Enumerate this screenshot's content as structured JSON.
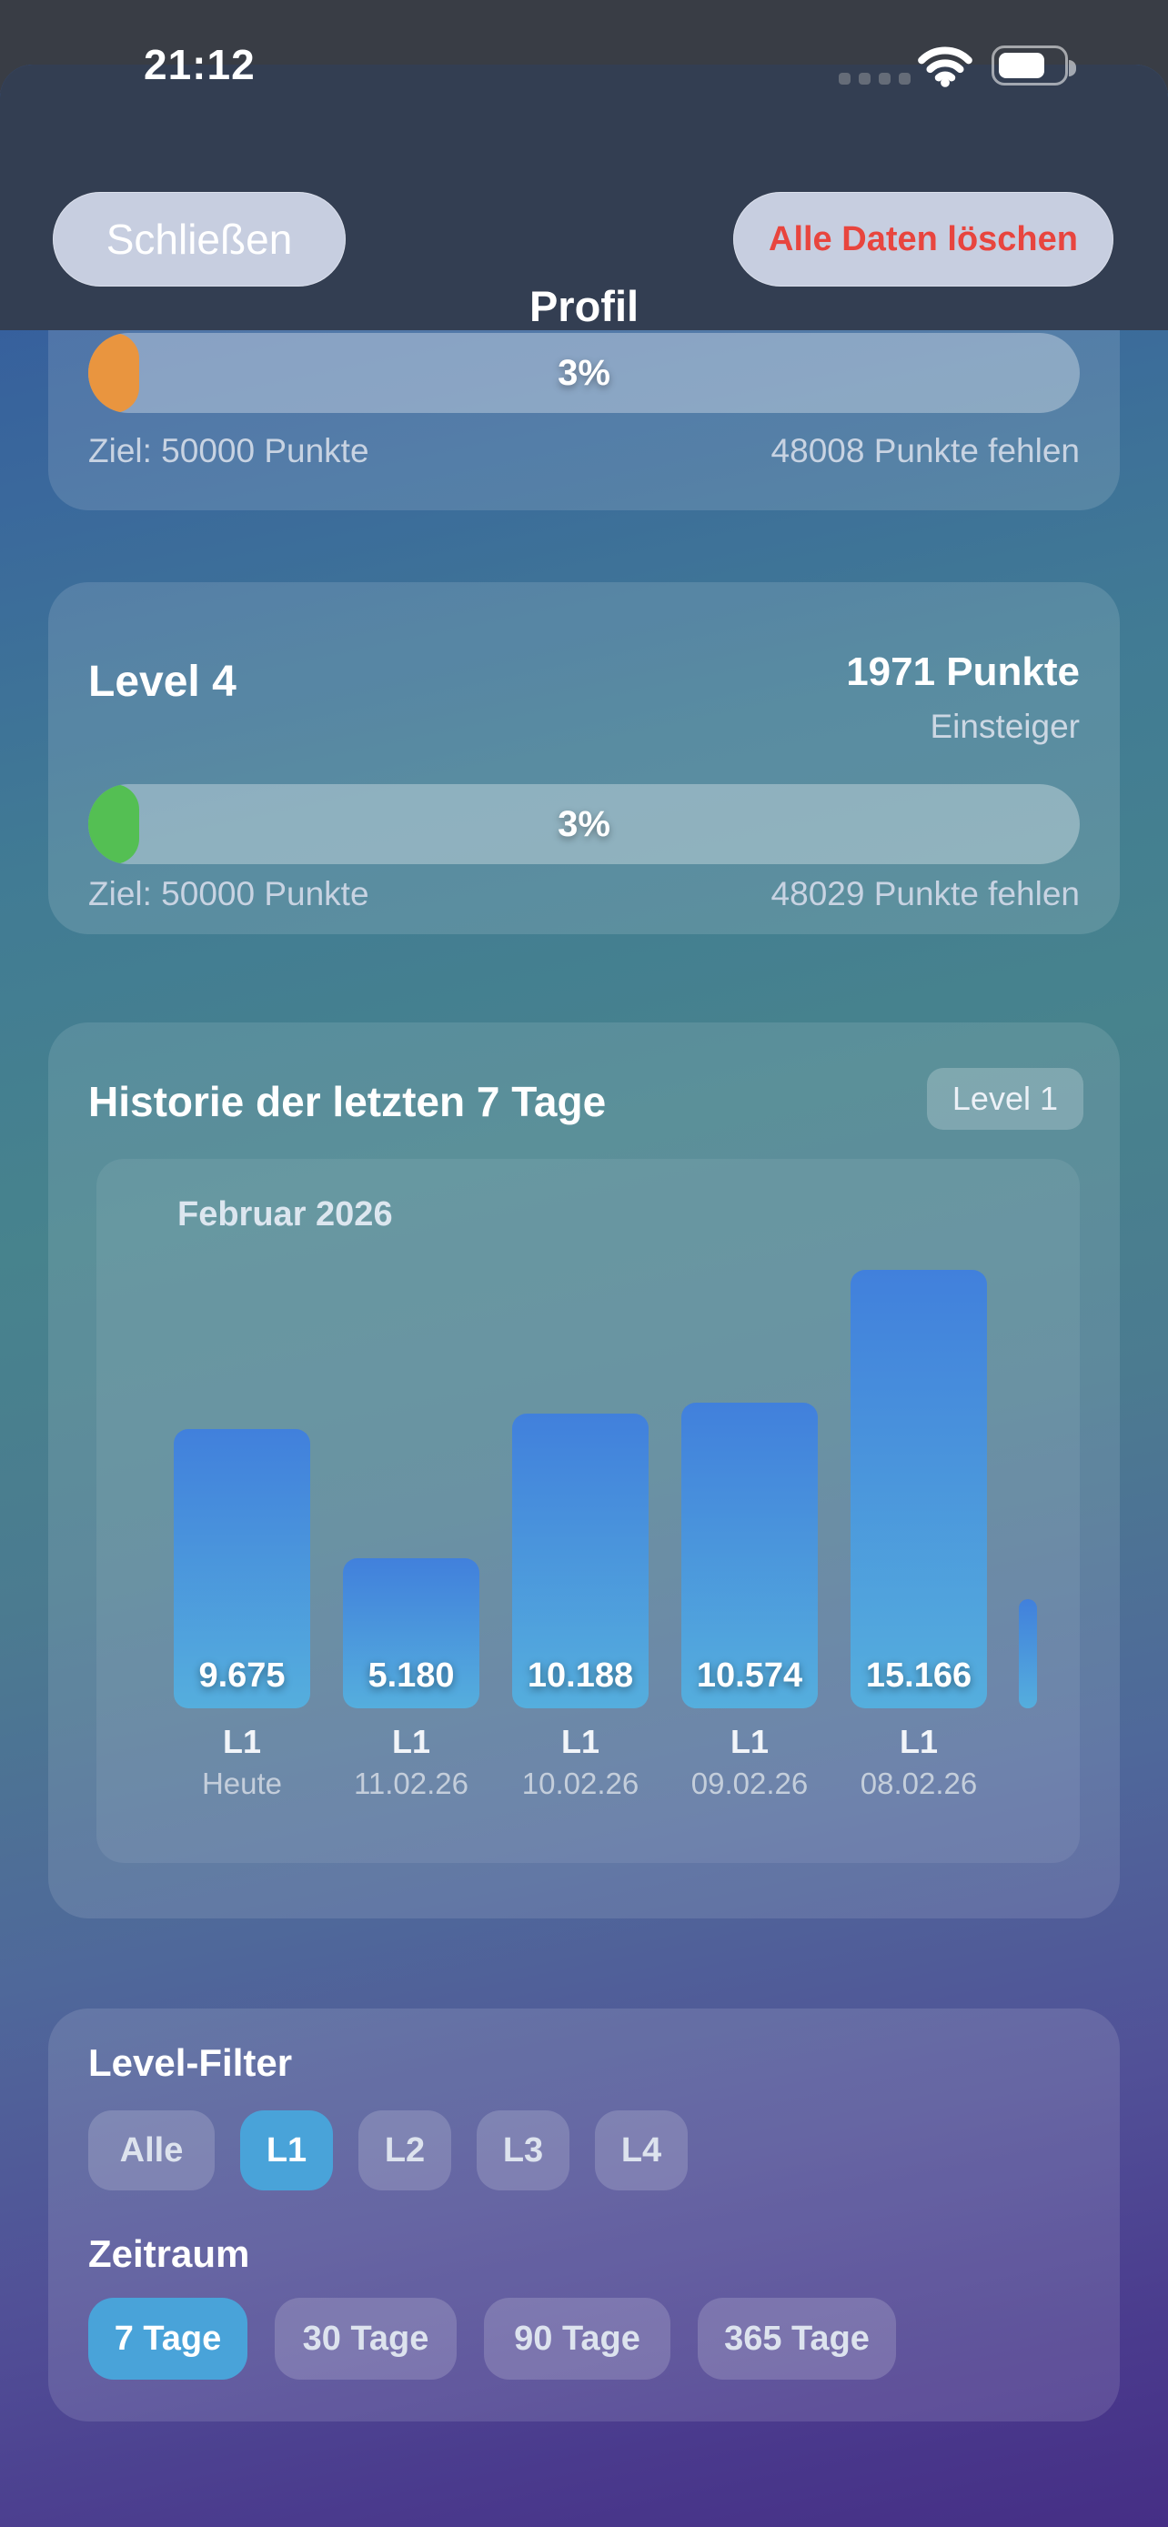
{
  "status_bar": {
    "time": "21:12",
    "signal_icon": "signal-dots",
    "wifi_icon": "wifi",
    "battery_icon": "battery"
  },
  "header": {
    "close_label": "Schließen",
    "title": "Profil",
    "delete_label": "Alle Daten löschen"
  },
  "cards": {
    "previous_level": {
      "progress_percent": "3%",
      "goal": "Ziel: 50000 Punkte",
      "remaining": "48008 Punkte fehlen"
    },
    "level4": {
      "title": "Level 4",
      "points": "1971 Punkte",
      "rank": "Einsteiger",
      "progress_percent": "3%",
      "goal": "Ziel: 50000 Punkte",
      "remaining": "48029 Punkte fehlen"
    },
    "history": {
      "title": "Historie der letzten 7 Tage",
      "badge": "Level 1",
      "month": "Februar 2026"
    },
    "filter": {
      "level_label": "Level-Filter",
      "levels": [
        "Alle",
        "L1",
        "L2",
        "L3",
        "L4"
      ],
      "active_level": "L1",
      "period_label": "Zeitraum",
      "periods": [
        "7 Tage",
        "30 Tage",
        "90 Tage",
        "365 Tage"
      ],
      "active_period": "7 Tage"
    }
  },
  "chart_data": {
    "type": "bar",
    "title": "Historie der letzten 7 Tage",
    "month_label": "Februar 2026",
    "categories": [
      "Heute",
      "11.02.26",
      "10.02.26",
      "09.02.26",
      "08.02.26"
    ],
    "series": [
      {
        "name": "L1",
        "values": [
          9675,
          5180,
          10188,
          10574,
          15166
        ]
      }
    ],
    "value_labels": [
      "9.675",
      "5.180",
      "10.188",
      "10.574",
      "15.166"
    ],
    "bar_level_tags": [
      "L1",
      "L1",
      "L1",
      "L1",
      "L1"
    ],
    "partial_bar": {
      "clipped": true,
      "value_estimate": 3770
    },
    "ylim": [
      0,
      15500
    ],
    "grid": false,
    "legend": false,
    "bar_gradient": [
      "#4180dc",
      "#55aedd"
    ]
  },
  "colors": {
    "accent_teal": "#49a3d9",
    "progress_orange": "#e9953f",
    "progress_green": "#54bf53",
    "delete_red": "#e8453e",
    "bar_top": "#4180dc",
    "bar_bottom": "#55aedd"
  }
}
